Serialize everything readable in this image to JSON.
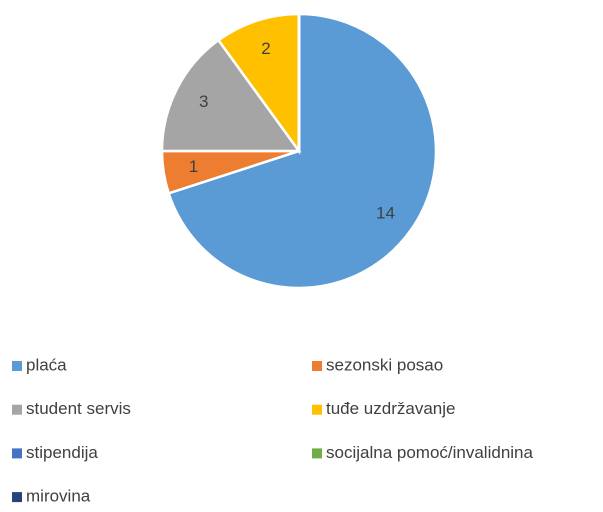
{
  "chart_data": {
    "type": "pie",
    "categories": [
      "plaća",
      "sezonski posao",
      "student servis",
      "tuđe uzdržavanje",
      "stipendija",
      "socijalna pomoć/invalidnina",
      "mirovina"
    ],
    "values": [
      14,
      1,
      3,
      2,
      0,
      0,
      0
    ],
    "colors": [
      "#5b9bd5",
      "#ed7d31",
      "#a5a5a5",
      "#ffc000",
      "#4472c4",
      "#70ad47",
      "#264478"
    ],
    "legend": "bottom"
  }
}
